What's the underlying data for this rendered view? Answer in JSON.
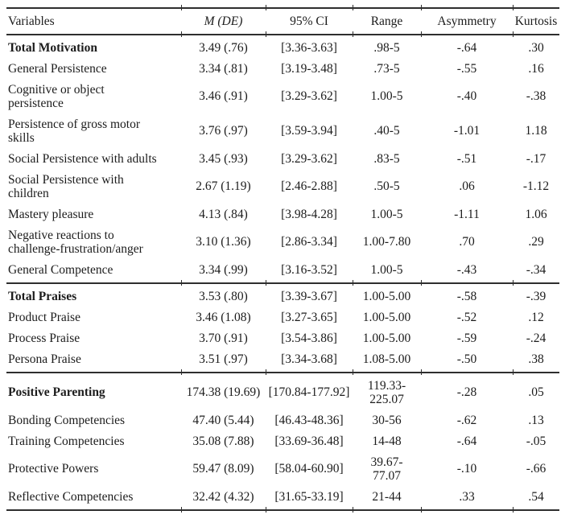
{
  "table": {
    "columns": [
      "Variables",
      "M (DE)",
      "95% CI",
      "Range",
      "Asymmetry",
      "Kurtosis"
    ],
    "sections": [
      {
        "rows": [
          {
            "variable": "Total Motivation",
            "bold": true,
            "m_de": "3.49 (.76)",
            "ci": "[3.36-3.63]",
            "range": ".98-5",
            "asymmetry": "-.64",
            "kurtosis": ".30"
          },
          {
            "variable": "General Persistence",
            "bold": false,
            "m_de": "3.34 (.81)",
            "ci": "[3.19-3.48]",
            "range": ".73-5",
            "asymmetry": "-.55",
            "kurtosis": ".16"
          },
          {
            "variable": "Cognitive or object persistence",
            "bold": false,
            "m_de": "3.46 (.91)",
            "ci": "[3.29-3.62]",
            "range": "1.00-5",
            "asymmetry": "-.40",
            "kurtosis": "-.38"
          },
          {
            "variable": "Persistence of gross motor skills",
            "bold": false,
            "m_de": "3.76 (.97)",
            "ci": "[3.59-3.94]",
            "range": ".40-5",
            "asymmetry": "-1.01",
            "kurtosis": "1.18"
          },
          {
            "variable": "Social Persistence with adults",
            "bold": false,
            "m_de": "3.45 (.93)",
            "ci": "[3.29-3.62]",
            "range": ".83-5",
            "asymmetry": "-.51",
            "kurtosis": "-.17"
          },
          {
            "variable": "Social Persistence with children",
            "bold": false,
            "m_de": "2.67 (1.19)",
            "ci": "[2.46-2.88]",
            "range": ".50-5",
            "asymmetry": ".06",
            "kurtosis": "-1.12"
          },
          {
            "variable": "Mastery pleasure",
            "bold": false,
            "m_de": "4.13 (.84)",
            "ci": "[3.98-4.28]",
            "range": "1.00-5",
            "asymmetry": "-1.11",
            "kurtosis": "1.06"
          },
          {
            "variable": "Negative reactions to challenge-frustration/anger",
            "bold": false,
            "m_de": "3.10 (1.36)",
            "ci": "[2.86-3.34]",
            "range": "1.00-7.80",
            "asymmetry": ".70",
            "kurtosis": ".29"
          },
          {
            "variable": "General Competence",
            "bold": false,
            "m_de": "3.34 (.99)",
            "ci": "[3.16-3.52]",
            "range": "1.00-5",
            "asymmetry": "-.43",
            "kurtosis": "-.34"
          }
        ]
      },
      {
        "rows": [
          {
            "variable": "Total Praises",
            "bold": true,
            "m_de": "3.53 (.80)",
            "ci": "[3.39-3.67]",
            "range": "1.00-5.00",
            "asymmetry": "-.58",
            "kurtosis": "-.39"
          },
          {
            "variable": "Product Praise",
            "bold": false,
            "m_de": "3.46 (1.08)",
            "ci": "[3.27-3.65]",
            "range": "1.00-5.00",
            "asymmetry": "-.52",
            "kurtosis": ".12"
          },
          {
            "variable": "Process Praise",
            "bold": false,
            "m_de": "3.70 (.91)",
            "ci": "[3.54-3.86]",
            "range": "1.00-5.00",
            "asymmetry": "-.59",
            "kurtosis": "-.24"
          },
          {
            "variable": "Persona Praise",
            "bold": false,
            "m_de": "3.51 (.97)",
            "ci": "[3.34-3.68]",
            "range": "1.08-5.00",
            "asymmetry": "-.50",
            "kurtosis": ".38"
          }
        ]
      },
      {
        "rows": [
          {
            "variable": "Positive Parenting",
            "bold": true,
            "m_de": "174.38 (19.69)",
            "ci": "[170.84-177.92]",
            "range": "119.33-225.07",
            "asymmetry": "-.28",
            "kurtosis": ".05"
          },
          {
            "variable": "Bonding Competencies",
            "bold": false,
            "m_de": "47.40 (5.44)",
            "ci": "[46.43-48.36]",
            "range": "30-56",
            "asymmetry": "-.62",
            "kurtosis": ".13"
          },
          {
            "variable": "Training Competencies",
            "bold": false,
            "m_de": "35.08 (7.88)",
            "ci": "[33.69-36.48]",
            "range": "14-48",
            "asymmetry": "-.64",
            "kurtosis": "-.05"
          },
          {
            "variable": "Protective Powers",
            "bold": false,
            "m_de": "59.47 (8.09)",
            "ci": "[58.04-60.90]",
            "range": "39.67-77.07",
            "asymmetry": "-.10",
            "kurtosis": "-.66"
          },
          {
            "variable": "Reflective Competencies",
            "bold": false,
            "m_de": "32.42 (4.32)",
            "ci": "[31.65-33.19]",
            "range": "21-44",
            "asymmetry": ".33",
            "kurtosis": ".54"
          }
        ]
      }
    ]
  }
}
